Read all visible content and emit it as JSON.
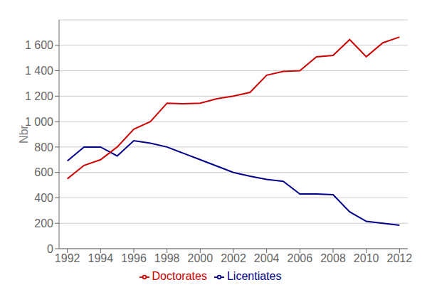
{
  "chart_data": {
    "type": "line",
    "y_label": "Nbr",
    "x": [
      1992,
      1993,
      1994,
      1995,
      1996,
      1997,
      1998,
      1999,
      2000,
      2001,
      2002,
      2003,
      2004,
      2005,
      2006,
      2007,
      2008,
      2009,
      2010,
      2011,
      2012
    ],
    "series": [
      {
        "name": "Licentiates",
        "color": "#00008B",
        "values": [
          690,
          800,
          800,
          730,
          850,
          830,
          800,
          750,
          700,
          650,
          600,
          570,
          545,
          530,
          430,
          430,
          425,
          290,
          215,
          200,
          185
        ]
      },
      {
        "name": "Doctorates",
        "color": "#CC0000",
        "values": [
          550,
          655,
          700,
          800,
          940,
          1000,
          1145,
          1140,
          1145,
          1180,
          1200,
          1230,
          1365,
          1395,
          1400,
          1510,
          1520,
          1645,
          1510,
          1620,
          1665
        ]
      }
    ],
    "xlim": [
      1991.5,
      2012.5
    ],
    "xticks": [
      1992,
      1994,
      1996,
      1998,
      2000,
      2002,
      2004,
      2006,
      2008,
      2010,
      2012
    ],
    "ylim": [
      0,
      1800
    ],
    "yticks": [
      0,
      200,
      400,
      600,
      800,
      {
        "value": 1000,
        "label": "1 000"
      },
      {
        "value": 1200,
        "label": "1 200"
      },
      {
        "value": 1400,
        "label": "1 400"
      },
      {
        "value": 1600,
        "label": "1 600"
      }
    ],
    "grid": "y",
    "legend": "bottom"
  }
}
